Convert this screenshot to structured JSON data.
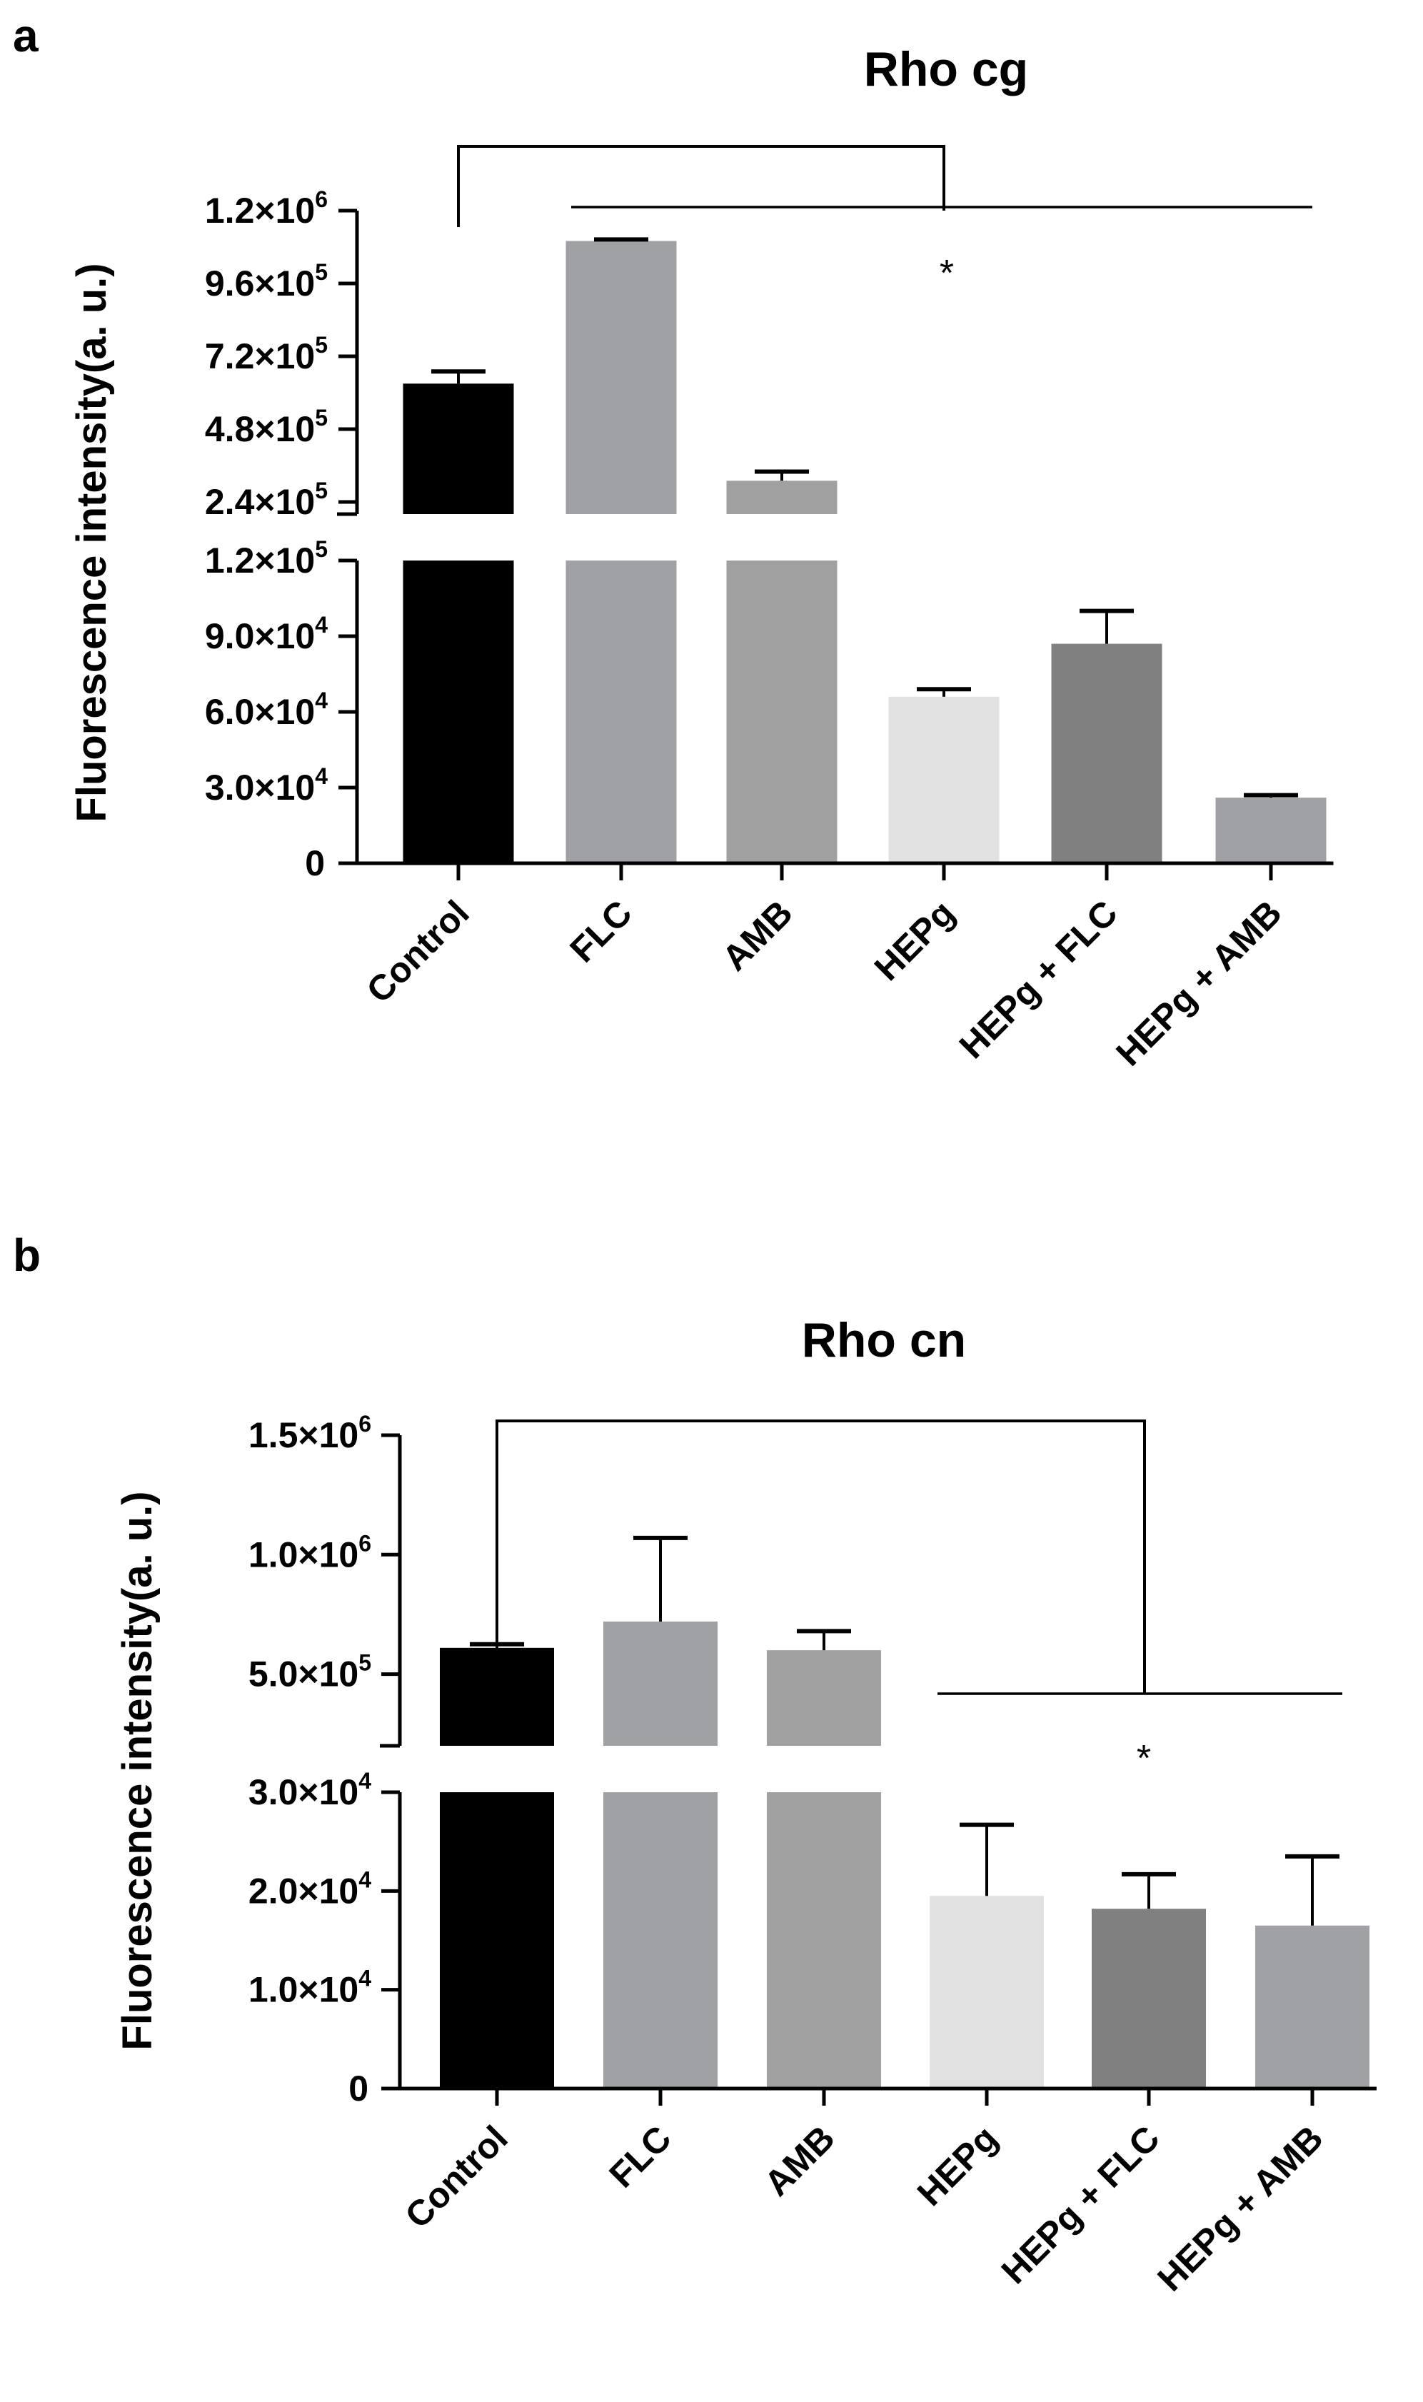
{
  "colors": {
    "control": "#000000",
    "flc": "#a0a1a4",
    "amb": "#a0a0a0",
    "hepg": "#e1e1e1",
    "hepg_flc": "#808080",
    "hepg_amb": "#a0a1a4",
    "axis": "#000000"
  },
  "chart_data": [
    {
      "panel": "a",
      "type": "bar",
      "title": "Rho cg",
      "xlabel": "",
      "ylabel": "Fluorescence intensity(a. u.)",
      "categories": [
        "Control",
        "FLC",
        "AMB",
        "HEPg",
        "HEPg + FLC",
        "HEPg + AMB"
      ],
      "values": [
        630000,
        1100000,
        310000,
        66000,
        87000,
        26000
      ],
      "errors": [
        40000,
        5000,
        30000,
        3000,
        13000,
        1000
      ],
      "axis_break": true,
      "lower_segment": {
        "ylim": [
          0,
          120000
        ],
        "ticks": [
          0,
          30000,
          60000,
          90000,
          120000
        ]
      },
      "upper_segment": {
        "ylim": [
          200000,
          1200000
        ],
        "ticks": [
          240000,
          480000,
          720000,
          960000,
          1200000
        ]
      },
      "tick_labels": [
        {
          "mant": "0",
          "exp": ""
        },
        {
          "mant": "3.0×10",
          "exp": "4"
        },
        {
          "mant": "6.0×10",
          "exp": "4"
        },
        {
          "mant": "9.0×10",
          "exp": "4"
        },
        {
          "mant": "1.2×10",
          "exp": "5"
        },
        {
          "mant": "2.4×10",
          "exp": "5"
        },
        {
          "mant": "4.8×10",
          "exp": "5"
        },
        {
          "mant": "7.2×10",
          "exp": "5"
        },
        {
          "mant": "9.6×10",
          "exp": "5"
        },
        {
          "mant": "1.2×10",
          "exp": "6"
        }
      ],
      "annotations": [
        {
          "text": "*",
          "note": "Control vs FLC, AMB, HEPg, HEPg + FLC, HEPg + AMB"
        }
      ]
    },
    {
      "panel": "b",
      "type": "bar",
      "title": "Rho cn",
      "xlabel": "",
      "ylabel": "Fluorescence intensity(a. u.)",
      "categories": [
        "Control",
        "FLC",
        "AMB",
        "HEPg",
        "HEPg + FLC",
        "HEPg + AMB"
      ],
      "values": [
        610000,
        720000,
        600000,
        19500,
        18200,
        16500
      ],
      "errors": [
        15000,
        350000,
        80000,
        7200,
        3500,
        7000
      ],
      "axis_break": true,
      "lower_segment": {
        "ylim": [
          0,
          30000
        ],
        "ticks": [
          0,
          10000,
          20000,
          30000
        ]
      },
      "upper_segment": {
        "ylim": [
          200000,
          1500000
        ],
        "ticks": [
          500000,
          1000000,
          1500000
        ]
      },
      "tick_labels": [
        {
          "mant": "0",
          "exp": ""
        },
        {
          "mant": "1.0×10",
          "exp": "4"
        },
        {
          "mant": "2.0×10",
          "exp": "4"
        },
        {
          "mant": "3.0×10",
          "exp": "4"
        },
        {
          "mant": "5.0×10",
          "exp": "5"
        },
        {
          "mant": "1.0×10",
          "exp": "6"
        },
        {
          "mant": "1.5×10",
          "exp": "6"
        }
      ],
      "annotations": [
        {
          "text": "*",
          "note": "Control vs HEPg, HEPg + FLC, HEPg + AMB"
        }
      ]
    }
  ]
}
